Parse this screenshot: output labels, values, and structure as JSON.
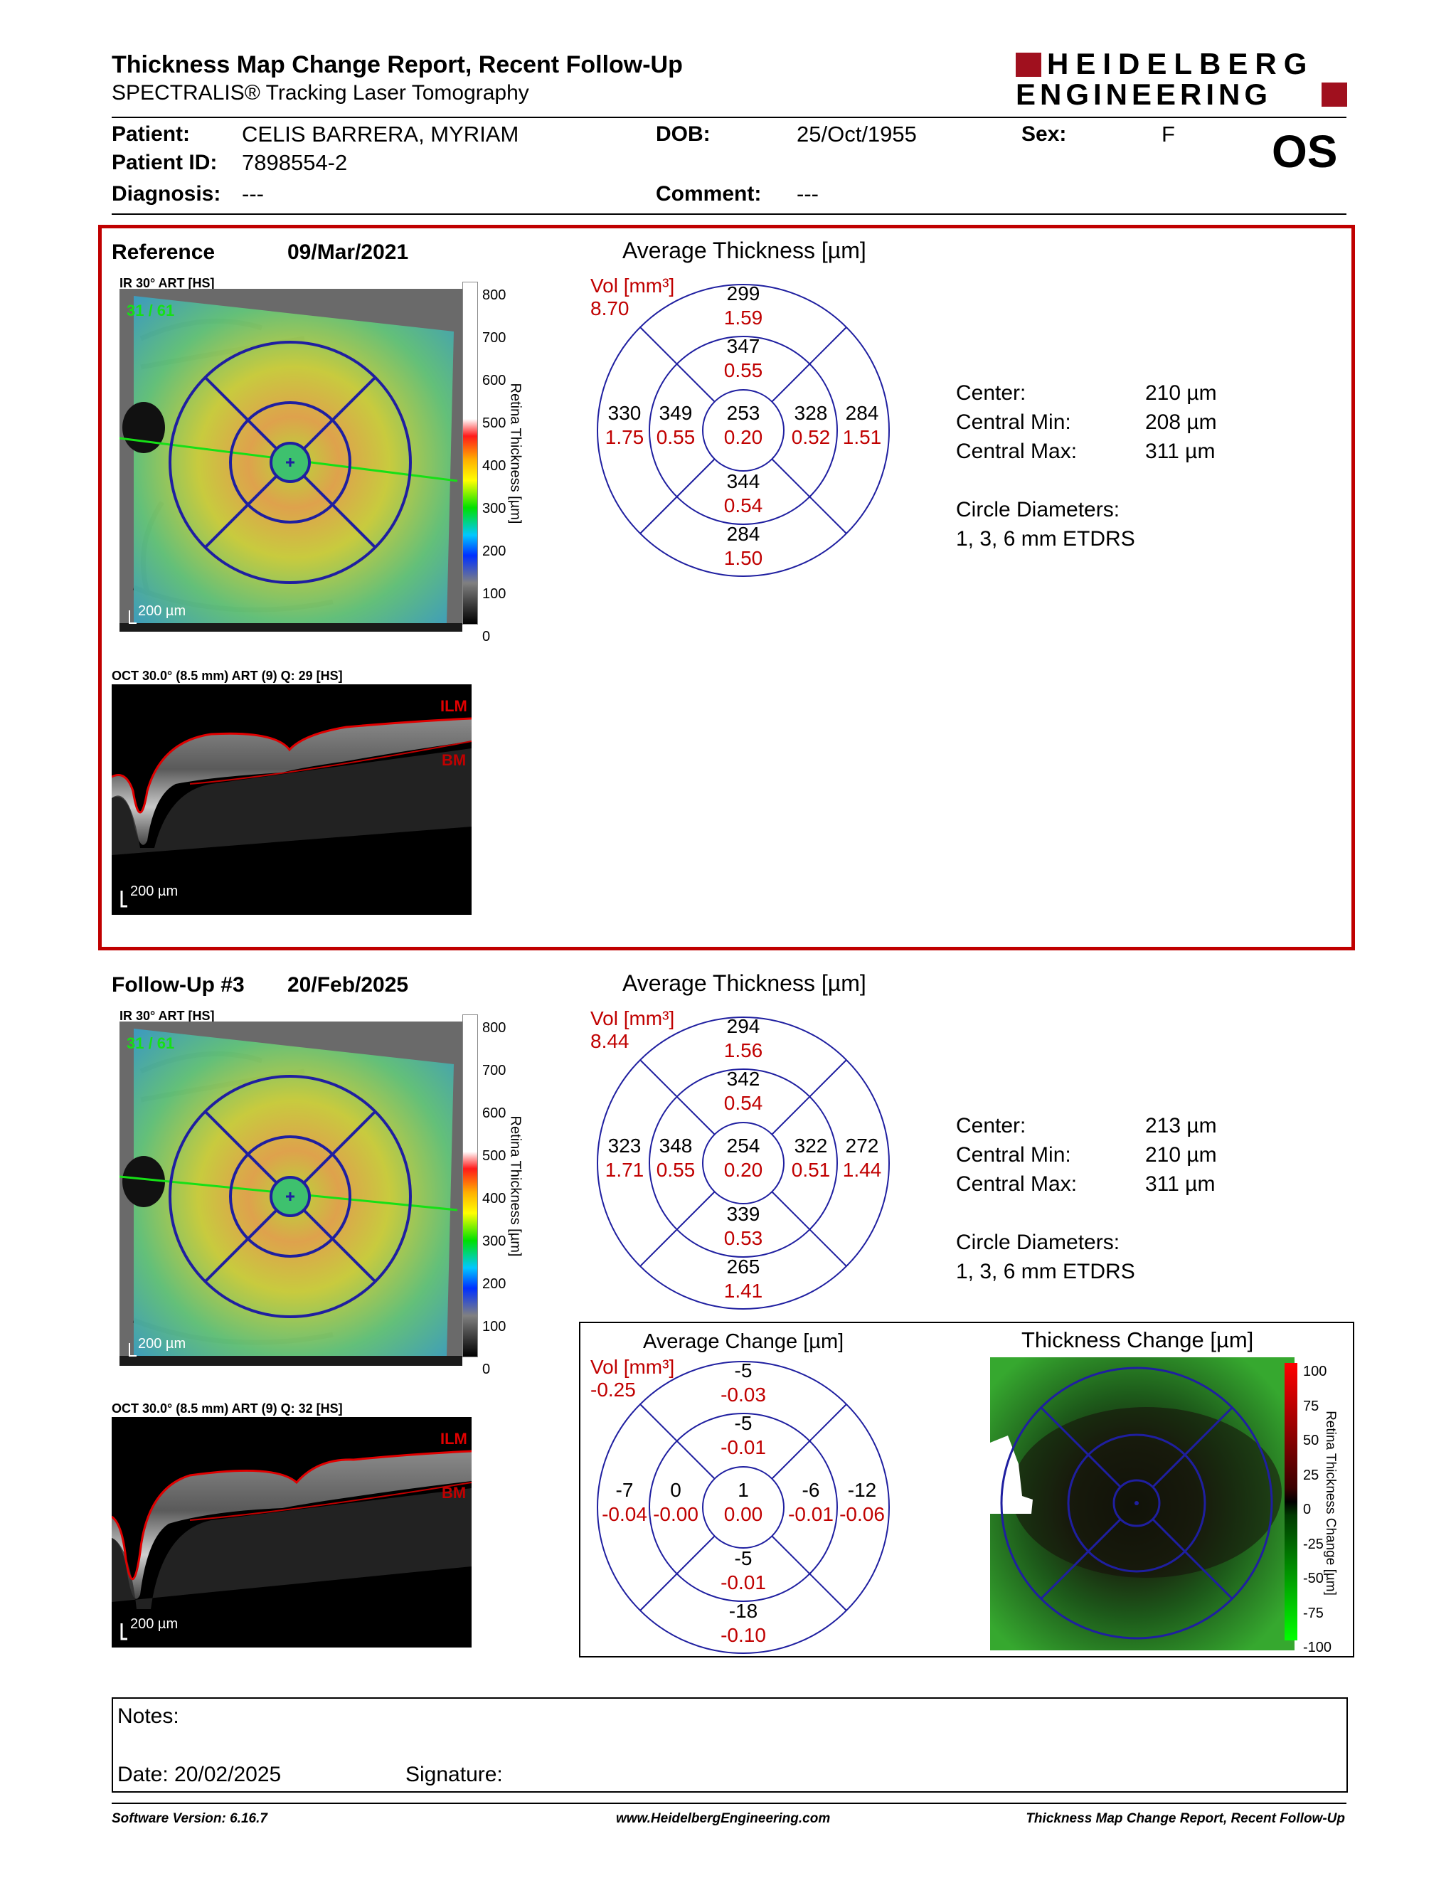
{
  "header": {
    "title": "Thickness Map Change Report, Recent Follow-Up",
    "subtitle": "SPECTRALIS® Tracking Laser Tomography",
    "logo_line1": "HEIDELBERG",
    "logo_line2": "ENGINEERING"
  },
  "patient": {
    "patient_label": "Patient:",
    "patient_value": "CELIS BARRERA, MYRIAM",
    "id_label": "Patient ID:",
    "id_value": "7898554-2",
    "diagnosis_label": "Diagnosis:",
    "diagnosis_value": "---",
    "dob_label": "DOB:",
    "dob_value": "25/Oct/1955",
    "comment_label": "Comment:",
    "comment_value": "---",
    "sex_label": "Sex:",
    "sex_value": "F",
    "eye": "OS"
  },
  "reference": {
    "label": "Reference",
    "date": "09/Mar/2021",
    "ir_caption": "IR 30° ART [HS]",
    "ir_overlay": "31 / 61",
    "scale_bar": "200 µm",
    "oct_caption": "OCT 30.0° (8.5 mm) ART (9) Q: 29 [HS]",
    "oct_scale": "200 µm",
    "ilm": "ILM",
    "bm": "BM",
    "avg_title": "Average Thickness [µm]",
    "vol_label": "Vol [mm³]",
    "vol_total": "8.70",
    "grid": {
      "outer_top": [
        "299",
        "1.59"
      ],
      "inner_top": [
        "347",
        "0.55"
      ],
      "outer_left": [
        "330",
        "1.75"
      ],
      "inner_left": [
        "349",
        "0.55"
      ],
      "center": [
        "253",
        "0.20"
      ],
      "inner_right": [
        "328",
        "0.52"
      ],
      "outer_right": [
        "284",
        "1.51"
      ],
      "inner_bottom": [
        "344",
        "0.54"
      ],
      "outer_bottom": [
        "284",
        "1.50"
      ]
    },
    "stats": {
      "center_label": "Center:",
      "center_value": "210 µm",
      "min_label": "Central Min:",
      "min_value": "208 µm",
      "max_label": "Central Max:",
      "max_value": "311 µm",
      "circle_label": "Circle Diameters:",
      "circle_value": "1, 3, 6 mm ETDRS"
    }
  },
  "followup": {
    "label": "Follow-Up #3",
    "date": "20/Feb/2025",
    "ir_caption": "IR 30° ART [HS]",
    "ir_overlay": "31 / 61",
    "scale_bar": "200 µm",
    "oct_caption": "OCT 30.0° (8.5 mm) ART (9) Q: 32 [HS]",
    "oct_scale": "200 µm",
    "ilm": "ILM",
    "bm": "BM",
    "avg_title": "Average Thickness [µm]",
    "vol_label": "Vol [mm³]",
    "vol_total": "8.44",
    "grid": {
      "outer_top": [
        "294",
        "1.56"
      ],
      "inner_top": [
        "342",
        "0.54"
      ],
      "outer_left": [
        "323",
        "1.71"
      ],
      "inner_left": [
        "348",
        "0.55"
      ],
      "center": [
        "254",
        "0.20"
      ],
      "inner_right": [
        "322",
        "0.51"
      ],
      "outer_right": [
        "272",
        "1.44"
      ],
      "inner_bottom": [
        "339",
        "0.53"
      ],
      "outer_bottom": [
        "265",
        "1.41"
      ]
    },
    "stats": {
      "center_label": "Center:",
      "center_value": "213 µm",
      "min_label": "Central Min:",
      "min_value": "210 µm",
      "max_label": "Central Max:",
      "max_value": "311 µm",
      "circle_label": "Circle Diameters:",
      "circle_value": "1, 3, 6 mm ETDRS"
    }
  },
  "change": {
    "avg_title": "Average Change [µm]",
    "vol_label": "Vol [mm³]",
    "vol_total": "-0.25",
    "grid": {
      "outer_top": [
        "-5",
        "-0.03"
      ],
      "inner_top": [
        "-5",
        "-0.01"
      ],
      "outer_left": [
        "-7",
        "-0.04"
      ],
      "inner_left": [
        "0",
        "-0.00"
      ],
      "center": [
        "1",
        "0.00"
      ],
      "inner_right": [
        "-6",
        "-0.01"
      ],
      "outer_right": [
        "-12",
        "-0.06"
      ],
      "inner_bottom": [
        "-5",
        "-0.01"
      ],
      "outer_bottom": [
        "-18",
        "-0.10"
      ]
    },
    "map_title": "Thickness Change [µm]"
  },
  "scales": {
    "thickness_ticks": [
      "800",
      "700",
      "600",
      "500",
      "400",
      "300",
      "200",
      "100",
      "0"
    ],
    "thickness_label": "Retina Thickness [µm]",
    "change_ticks": [
      "100",
      "75",
      "50",
      "25",
      "0",
      "-25",
      "-50",
      "-75",
      "-100"
    ],
    "change_label": "Retina Thickness Change [µm]"
  },
  "notes": {
    "notes_label": "Notes:",
    "date_label": "Date: 20/02/2025",
    "signature_label": "Signature:"
  },
  "footer": {
    "software": "Software Version: 6.16.7",
    "url": "www.HeidelbergEngineering.com",
    "report": "Thickness Map Change Report, Recent Follow-Up"
  },
  "colors": {
    "accent_red": "#c00000",
    "grid_blue": "#1f1fa0",
    "scan_green": "#16e016"
  }
}
